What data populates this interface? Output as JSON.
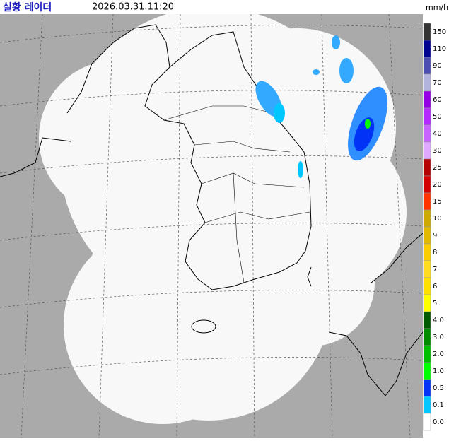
{
  "header": {
    "title": "실황 레이더",
    "time": "2026.03.31.11:20"
  },
  "legend": {
    "unit": "mm/h",
    "items": [
      {
        "label": "150",
        "color": "#333333"
      },
      {
        "label": "110",
        "color": "#000390"
      },
      {
        "label": "90",
        "color": "#4c4eb1"
      },
      {
        "label": "70",
        "color": "#b3b4de"
      },
      {
        "label": "60",
        "color": "#9300e4"
      },
      {
        "label": "50",
        "color": "#b329ff"
      },
      {
        "label": "40",
        "color": "#c963ff"
      },
      {
        "label": "30",
        "color": "#e0a9ff"
      },
      {
        "label": "25",
        "color": "#b40000"
      },
      {
        "label": "20",
        "color": "#d20000"
      },
      {
        "label": "15",
        "color": "#ff3300"
      },
      {
        "label": "10",
        "color": "#ccaa00"
      },
      {
        "label": "9",
        "color": "#e0b900"
      },
      {
        "label": "8",
        "color": "#f9cd00"
      },
      {
        "label": "7",
        "color": "#ffdc1f"
      },
      {
        "label": "6",
        "color": "#ffe100"
      },
      {
        "label": "5",
        "color": "#ffff00"
      },
      {
        "label": "4.0",
        "color": "#005a00"
      },
      {
        "label": "3.0",
        "color": "#008c00"
      },
      {
        "label": "2.0",
        "color": "#00be00"
      },
      {
        "label": "1.0",
        "color": "#00ff00"
      },
      {
        "label": "0.5",
        "color": "#0033f5"
      },
      {
        "label": "0.1",
        "color": "#00c8ff"
      },
      {
        "label": "0.0",
        "color": "#ffffff"
      }
    ]
  }
}
